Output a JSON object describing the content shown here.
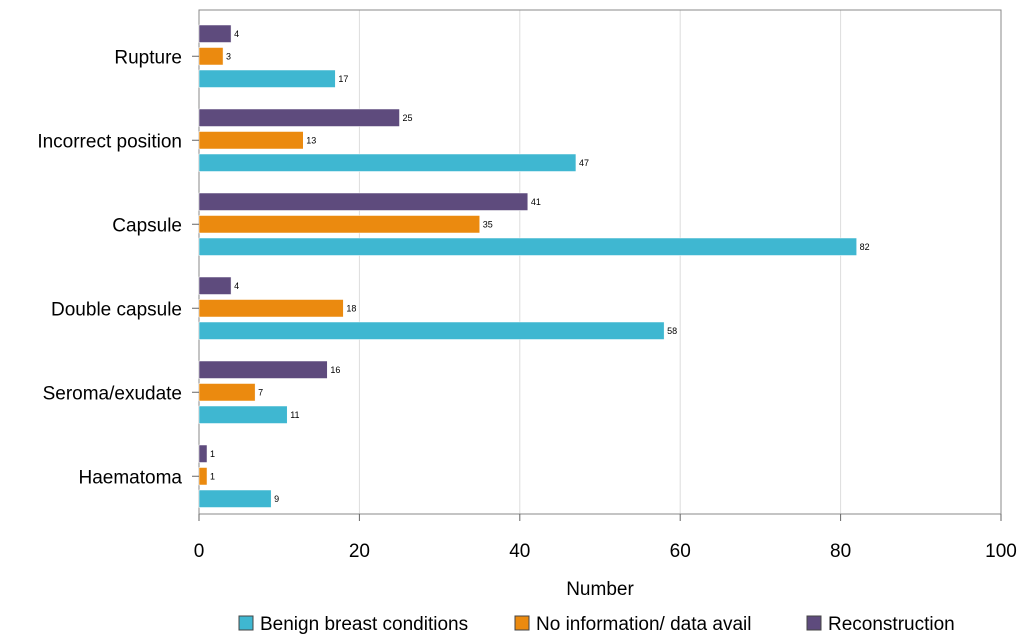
{
  "chart_data": {
    "type": "bar",
    "orientation": "horizontal",
    "categories": [
      "Rupture",
      "Incorrect position",
      "Capsule",
      "Double capsule",
      "Seroma/exudate",
      "Haematoma"
    ],
    "series": [
      {
        "name": "Reconstruction",
        "values": [
          4,
          25,
          41,
          4,
          16,
          1
        ]
      },
      {
        "name": "No information/ data avail",
        "values": [
          3,
          13,
          35,
          18,
          7,
          1
        ]
      },
      {
        "name": "Benign breast conditions",
        "values": [
          17,
          47,
          82,
          58,
          11,
          9
        ]
      }
    ],
    "legend_order": [
      "Benign breast conditions",
      "No information/ data avail",
      "Reconstruction"
    ],
    "xlabel": "Number",
    "ylabel": "",
    "xlim": [
      0,
      100
    ],
    "xticks": [
      0,
      20,
      40,
      60,
      80,
      100
    ],
    "grid": "vertical",
    "legend_placement": "bottom",
    "colors": {
      "Reconstruction": "#5e4b7d",
      "No information/ data avail": "#eb8a0f",
      "Benign breast conditions": "#3fb7d1"
    }
  }
}
